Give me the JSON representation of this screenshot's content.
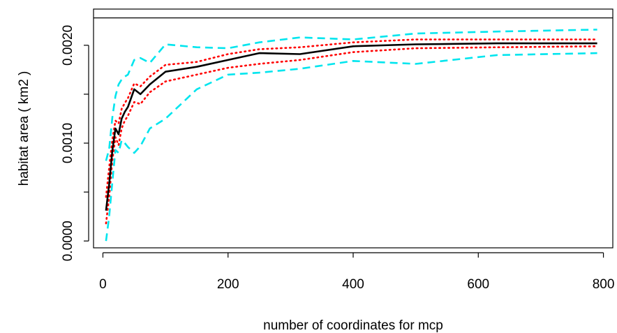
{
  "chart_data": {
    "type": "line",
    "title": "",
    "xlabel": "number of coordinates for mcp",
    "ylabel": "habitat area ( km2 )",
    "xlim": [
      -15,
      815
    ],
    "ylim": [
      -7e-05,
      0.00237
    ],
    "x_ticks": [
      0,
      200,
      400,
      600,
      800
    ],
    "x_tick_labels": [
      "0",
      "200",
      "400",
      "600",
      "800"
    ],
    "y_ticks": [
      0,
      0.0005,
      0.001,
      0.0015,
      0.002
    ],
    "y_tick_labels": [
      "0.0000",
      "",
      "0.0010",
      "",
      "0.0020"
    ],
    "reference_line": {
      "y": 0.00228,
      "color": "#000000"
    },
    "x": [
      5,
      10,
      15,
      20,
      25,
      30,
      35,
      40,
      50,
      60,
      75,
      100,
      150,
      200,
      250,
      315,
      400,
      500,
      630,
      790
    ],
    "series": [
      {
        "role": "mean",
        "color": "#000000",
        "style": "solid",
        "values": [
          0.00031,
          0.00058,
          0.00092,
          0.00115,
          0.00109,
          0.00125,
          0.00132,
          0.00137,
          0.00155,
          0.0015,
          0.0016,
          0.00173,
          0.00178,
          0.00185,
          0.00192,
          0.00191,
          0.00199,
          0.00201,
          0.00202,
          0.00202
        ]
      },
      {
        "role": "inner-upper",
        "color": "#ff0000",
        "style": "dotted",
        "values": [
          0.00045,
          0.00075,
          0.00103,
          0.00123,
          0.0012,
          0.00135,
          0.00141,
          0.00146,
          0.00161,
          0.00158,
          0.00168,
          0.0018,
          0.00183,
          0.00191,
          0.00196,
          0.00198,
          0.00203,
          0.00206,
          0.00206,
          0.00206
        ]
      },
      {
        "role": "inner-lower",
        "color": "#ff0000",
        "style": "dotted",
        "values": [
          0.00018,
          0.00045,
          0.00082,
          0.00106,
          0.00098,
          0.00115,
          0.00123,
          0.00128,
          0.00142,
          0.0014,
          0.00152,
          0.00163,
          0.0017,
          0.00177,
          0.00181,
          0.00185,
          0.00193,
          0.00197,
          0.00198,
          0.00199
        ]
      },
      {
        "role": "outer-upper",
        "color": "#00e5ee",
        "style": "dashed",
        "values": [
          0.00082,
          0.00094,
          0.00126,
          0.00148,
          0.0016,
          0.00165,
          0.00168,
          0.0017,
          0.00185,
          0.00187,
          0.00182,
          0.00201,
          0.00198,
          0.00197,
          0.00203,
          0.00208,
          0.00206,
          0.00212,
          0.00214,
          0.00216
        ]
      },
      {
        "role": "outer-lower",
        "color": "#00e5ee",
        "style": "dashed",
        "values": [
          0.0,
          0.00025,
          0.0006,
          0.00093,
          0.0009,
          0.00103,
          0.001,
          0.00096,
          0.0009,
          0.00097,
          0.00115,
          0.00125,
          0.00155,
          0.0017,
          0.00172,
          0.00176,
          0.00184,
          0.00181,
          0.0019,
          0.00192
        ]
      }
    ]
  }
}
